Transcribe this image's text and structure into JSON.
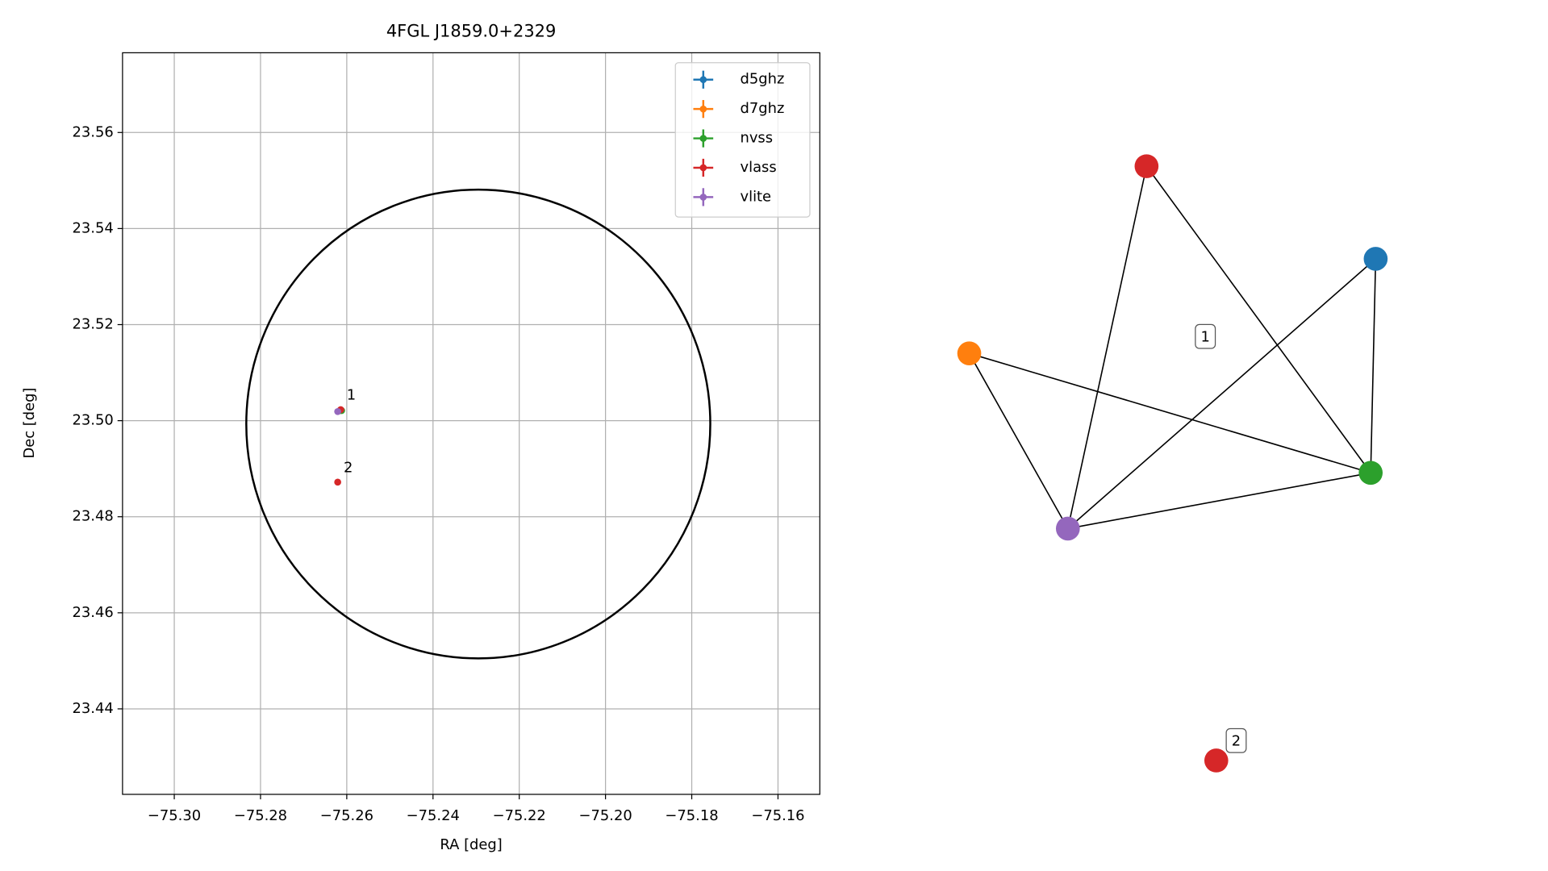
{
  "chart_data": [
    {
      "type": "scatter",
      "title": "4FGL J1859.0+2329",
      "x_label": "RA [deg]",
      "y_label": "Dec [deg]",
      "xlim": [
        -75.312,
        -75.1503
      ],
      "ylim": [
        23.4222,
        23.5766
      ],
      "xticks": [
        {
          "value": -75.3,
          "label": "−75.30"
        },
        {
          "value": -75.28,
          "label": "−75.28"
        },
        {
          "value": -75.26,
          "label": "−75.26"
        },
        {
          "value": -75.24,
          "label": "−75.24"
        },
        {
          "value": -75.22,
          "label": "−75.22"
        },
        {
          "value": -75.2,
          "label": "−75.20"
        },
        {
          "value": -75.18,
          "label": "−75.18"
        },
        {
          "value": -75.16,
          "label": "−75.16"
        }
      ],
      "yticks": [
        23.44,
        23.46,
        23.48,
        {
          "value": 23.5,
          "label": "23.50"
        },
        23.52,
        23.54,
        23.56
      ],
      "grid": true,
      "legend": "upper right",
      "series": [
        {
          "name": "d5ghz",
          "color": "#1f77b4",
          "x": [
            -75.2616
          ],
          "values": [
            23.5021
          ]
        },
        {
          "name": "d7ghz",
          "color": "#ff7f0e",
          "x": [
            -75.2616
          ],
          "values": [
            23.5021
          ]
        },
        {
          "name": "nvss",
          "color": "#2ca02c",
          "x": [
            -75.2612
          ],
          "values": [
            23.5021
          ]
        },
        {
          "name": "vlass",
          "color": "#d62728",
          "x": [
            -75.2614,
            -75.2621
          ],
          "values": [
            23.5023,
            23.4872
          ]
        },
        {
          "name": "vlite",
          "color": "#9467bd",
          "x": [
            -75.2621
          ],
          "values": [
            23.5019
          ]
        }
      ],
      "circle": {
        "center": [
          -75.2295,
          23.4993
        ],
        "radius_x": 0.0538,
        "radius_y": 0.0488,
        "color": "#000000"
      },
      "annotations": [
        {
          "text": "1",
          "x": -75.2614,
          "y": 23.5023
        },
        {
          "text": "2",
          "x": -75.2621,
          "y": 23.4872
        }
      ]
    },
    {
      "type": "network",
      "nodes": [
        {
          "color": "#d62728"
        },
        {
          "color": "#1f77b4"
        },
        {
          "color": "#ff7f0e"
        },
        {
          "color": "#2ca02c"
        },
        {
          "color": "#9467bd"
        },
        {
          "color": "#d62728"
        }
      ],
      "edges": [
        [
          0,
          4
        ],
        [
          0,
          3
        ],
        [
          1,
          4
        ],
        [
          1,
          3
        ],
        [
          2,
          4
        ],
        [
          2,
          3
        ],
        [
          4,
          3
        ]
      ],
      "group_labels": [
        {
          "text": "1"
        },
        {
          "text": "2"
        }
      ]
    }
  ]
}
